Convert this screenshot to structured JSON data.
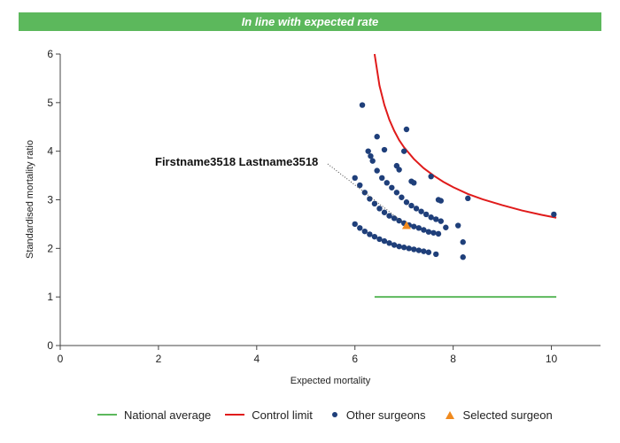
{
  "banner": {
    "text": "In line with expected rate",
    "color": "#5cb85c"
  },
  "chart_data": {
    "type": "scatter",
    "title": "In line with expected rate",
    "xlabel": "Expected mortality",
    "ylabel": "Standardised mortality ratio",
    "xlim": [
      0,
      11
    ],
    "ylim": [
      0,
      6
    ],
    "xticks": [
      "0",
      "2",
      "4",
      "6",
      "8",
      "10"
    ],
    "yticks": [
      "0",
      "1",
      "2",
      "3",
      "4",
      "5",
      "6"
    ],
    "grid": false,
    "legend_position": "bottom",
    "annotation": {
      "text": "Firstname3518 Lastname3518",
      "x": 7.05,
      "y": 2.47
    },
    "series": [
      {
        "name": "National average",
        "kind": "line",
        "color": "#5cb85c",
        "x": [
          6.4,
          10.1
        ],
        "y": [
          1.0,
          1.0
        ]
      },
      {
        "name": "Control limit",
        "kind": "line",
        "color": "#e01b1b",
        "x": [
          6.4,
          6.5,
          6.6,
          6.7,
          6.8,
          6.9,
          7.0,
          7.2,
          7.4,
          7.6,
          7.8,
          8.0,
          8.3,
          8.6,
          9.0,
          9.4,
          9.8,
          10.1
        ],
        "y": [
          6.0,
          5.35,
          4.95,
          4.65,
          4.42,
          4.23,
          4.08,
          3.84,
          3.65,
          3.5,
          3.37,
          3.26,
          3.12,
          3.01,
          2.89,
          2.78,
          2.69,
          2.63
        ]
      },
      {
        "name": "Other surgeons",
        "kind": "scatter",
        "color": "#1f3f7a",
        "x": [
          6.0,
          6.1,
          6.2,
          6.3,
          6.4,
          6.5,
          6.6,
          6.7,
          6.8,
          6.9,
          7.0,
          7.1,
          7.2,
          7.3,
          7.4,
          7.5,
          6.0,
          6.1,
          6.2,
          6.3,
          6.4,
          6.5,
          6.6,
          6.7,
          6.8,
          6.9,
          7.0,
          7.1,
          7.2,
          7.3,
          7.4,
          7.5,
          7.6,
          7.7,
          6.27,
          6.32,
          6.36,
          6.55,
          6.65,
          6.75,
          6.85,
          6.95,
          7.05,
          7.15,
          7.25,
          7.35,
          7.45,
          7.55,
          7.65,
          7.75,
          6.15,
          6.45,
          6.6,
          6.85,
          6.9,
          7.0,
          7.05,
          7.15,
          7.2,
          7.55,
          7.7,
          7.75,
          7.85,
          8.1,
          8.2,
          8.2,
          8.3,
          10.05,
          7.65,
          6.45
        ],
        "y": [
          2.5,
          2.42,
          2.35,
          2.29,
          2.24,
          2.19,
          2.15,
          2.11,
          2.07,
          2.04,
          2.02,
          2.0,
          1.98,
          1.96,
          1.94,
          1.92,
          3.45,
          3.3,
          3.15,
          3.02,
          2.92,
          2.82,
          2.74,
          2.67,
          2.62,
          2.57,
          2.52,
          2.48,
          2.45,
          2.42,
          2.38,
          2.34,
          2.32,
          2.3,
          4.0,
          3.9,
          3.8,
          3.45,
          3.35,
          3.25,
          3.15,
          3.05,
          2.95,
          2.88,
          2.82,
          2.76,
          2.7,
          2.64,
          2.6,
          2.56,
          4.95,
          4.3,
          4.03,
          3.7,
          3.62,
          4.0,
          4.45,
          3.38,
          3.35,
          3.48,
          3.0,
          2.98,
          2.43,
          2.47,
          2.13,
          1.82,
          3.03,
          2.7,
          1.88,
          3.6
        ]
      },
      {
        "name": "Selected surgeon",
        "kind": "scatter",
        "marker": "triangle",
        "color": "#f08a1e",
        "x": [
          7.05
        ],
        "y": [
          2.47
        ]
      }
    ]
  }
}
